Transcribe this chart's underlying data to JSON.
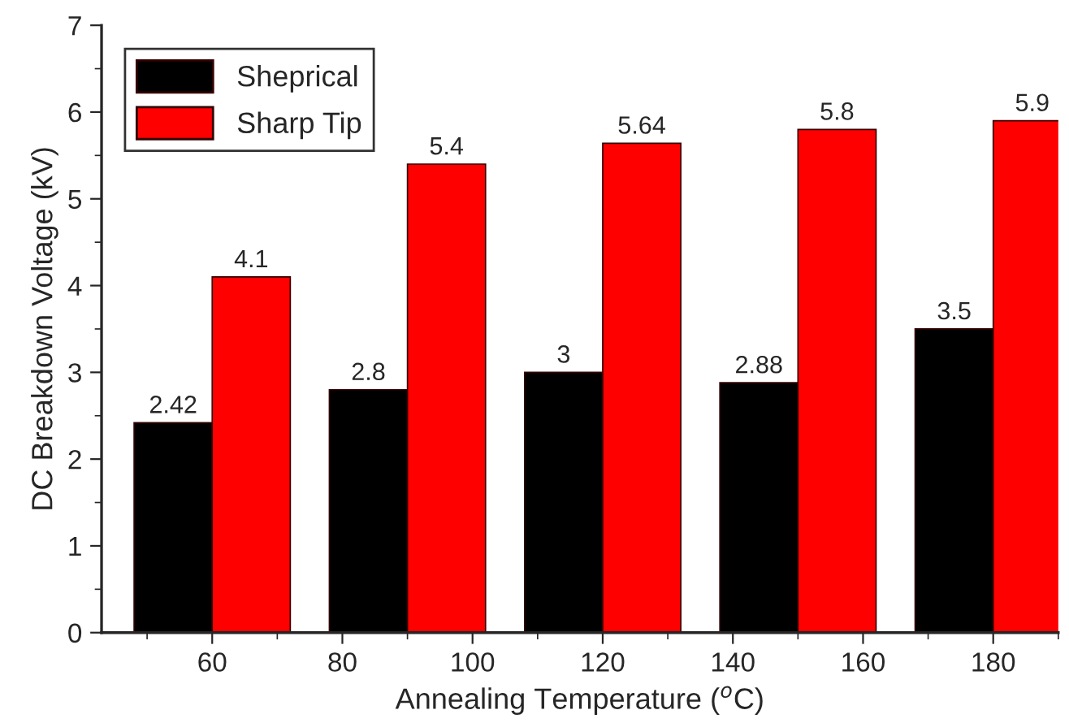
{
  "chart_data": {
    "type": "bar",
    "xlabel": "Annealing Temperature ($^{o}$C)",
    "ylabel": "DC Breakdown Voltage (kV)",
    "series": [
      {
        "name": "Sheprical",
        "color": "#000000",
        "x": [
          54,
          84,
          114,
          144,
          174
        ],
        "values": [
          2.42,
          2.8,
          3,
          2.88,
          3.5
        ]
      },
      {
        "name": "Sharp Tip",
        "color": "#ff0000",
        "x": [
          66,
          96,
          126,
          156,
          186
        ],
        "values": [
          4.1,
          5.4,
          5.64,
          5.8,
          5.9
        ]
      }
    ],
    "xlim": [
      43,
      190
    ],
    "xticks": [
      60,
      80,
      100,
      120,
      140,
      160,
      180
    ],
    "ylim": [
      0,
      7
    ],
    "yticks": [
      0,
      1,
      2,
      3,
      4,
      5,
      6,
      7
    ],
    "data_labels": true,
    "legend": "top left",
    "grid": false
  }
}
